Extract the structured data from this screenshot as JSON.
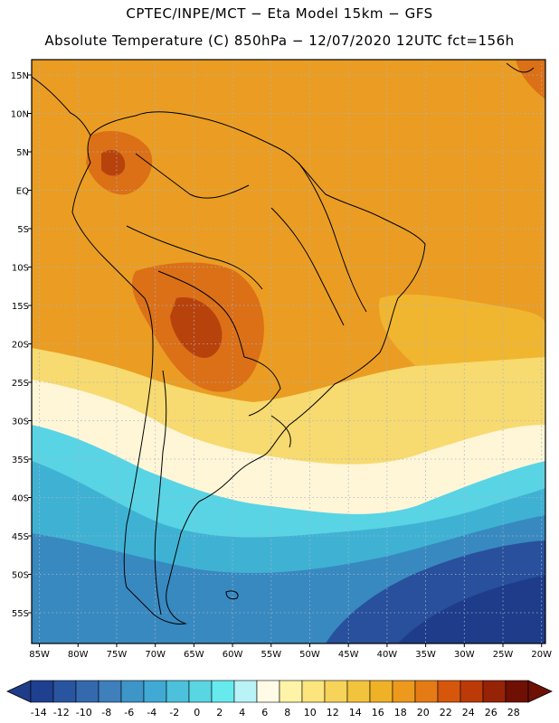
{
  "header": {
    "line1": "CPTEC/INPE/MCT −  Eta Model 15km − GFS",
    "line2": "Absolute Temperature (C) 850hPa − 12/07/2020 12UTC fct=156h"
  },
  "axes": {
    "lat_labels": [
      "15N",
      "10N",
      "5N",
      "EQ",
      "5S",
      "10S",
      "15S",
      "20S",
      "25S",
      "30S",
      "35S",
      "40S",
      "45S",
      "50S",
      "55S"
    ],
    "lon_labels": [
      "85W",
      "80W",
      "75W",
      "70W",
      "65W",
      "60W",
      "55W",
      "50W",
      "45W",
      "40W",
      "35W",
      "30W",
      "25W",
      "20W"
    ]
  },
  "colorbar": {
    "labels": [
      "-14",
      "-12",
      "-10",
      "-8",
      "-6",
      "-4",
      "-2",
      "0",
      "2",
      "4",
      "6",
      "8",
      "10",
      "12",
      "14",
      "16",
      "18",
      "20",
      "22",
      "24",
      "26",
      "28"
    ],
    "colors": [
      "#1f3f8f",
      "#2955a0",
      "#3469ae",
      "#3e7fbc",
      "#3e95c8",
      "#40aad4",
      "#4dc0dc",
      "#5ad5e2",
      "#66eaee",
      "#b9f3f8",
      "#fffbe6",
      "#fff3a8",
      "#fbe57c",
      "#f6d45a",
      "#f2c33c",
      "#efb126",
      "#ec991e",
      "#e57b14",
      "#d6560c",
      "#bb3a08",
      "#962306",
      "#6e1004"
    ]
  },
  "map": {
    "colors": {
      "hot_dark": "#b8420c",
      "hot": "#db7017",
      "warm": "#ea9d22",
      "warm_light": "#f0b630",
      "yellow": "#f7da70",
      "cream": "#fff6d8",
      "cyan": "#59d4e4",
      "teal": "#3fb2d4",
      "blue": "#3889c0",
      "navy": "#28509c",
      "deep_navy": "#1e3c8a"
    }
  }
}
